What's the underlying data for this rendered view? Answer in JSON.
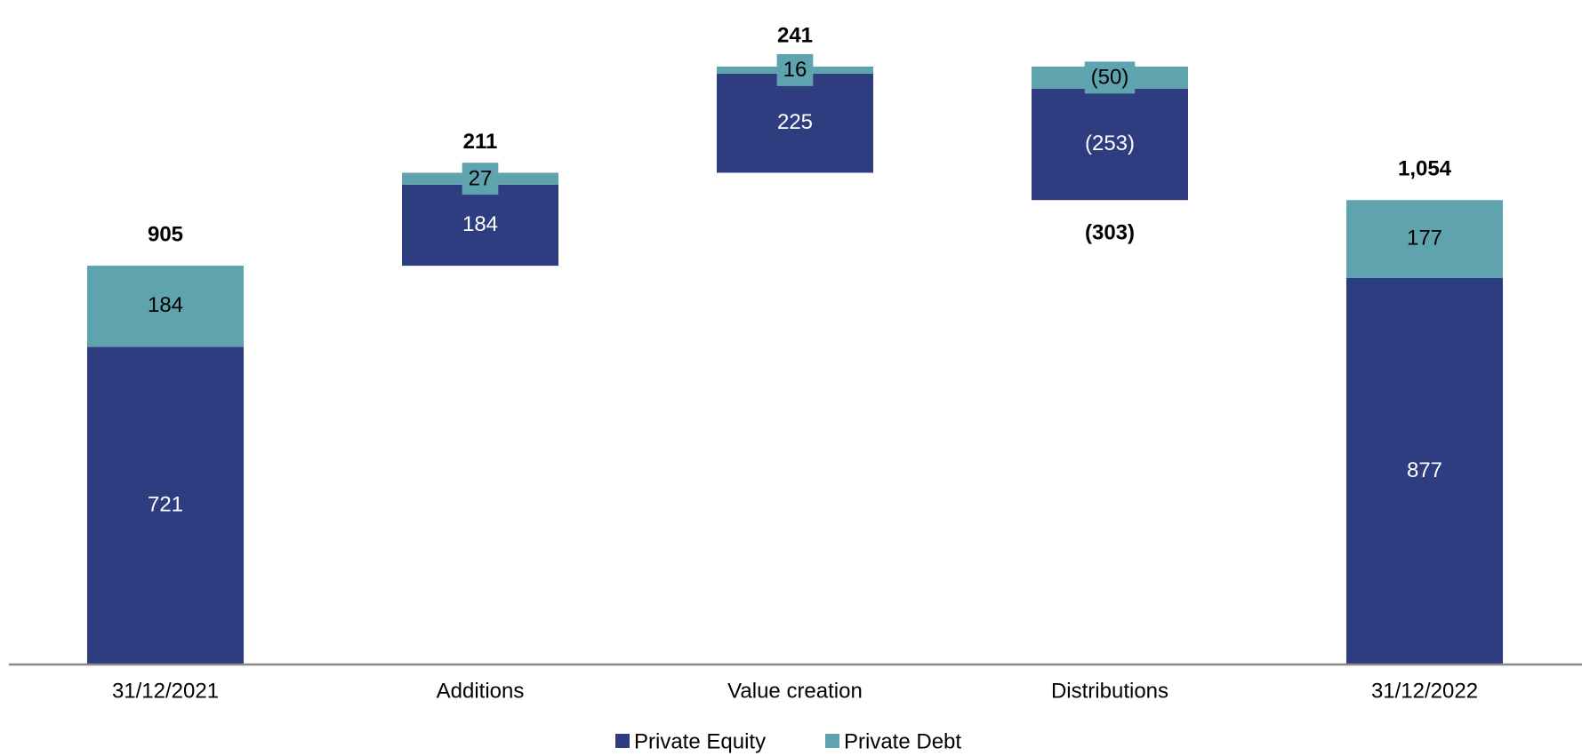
{
  "chart_data": {
    "type": "waterfall",
    "categories": [
      "31/12/2021",
      "Additions",
      "Value creation",
      "Distributions",
      "31/12/2022"
    ],
    "measure": [
      "absolute",
      "relative",
      "relative",
      "relative",
      "absolute"
    ],
    "series": [
      {
        "name": "Private Equity",
        "color": "#2e3d80",
        "label_color": "#ffffff",
        "values": [
          721,
          184,
          225,
          -253,
          877
        ],
        "value_labels": [
          "721",
          "184",
          "225",
          "(253)",
          "877"
        ]
      },
      {
        "name": "Private Debt",
        "color": "#5fa3ae",
        "label_color": "#000000",
        "values": [
          184,
          27,
          16,
          -50,
          177
        ],
        "value_labels": [
          "184",
          "27",
          "16",
          "(50)",
          "177"
        ]
      }
    ],
    "totals": [
      905,
      211,
      241,
      -303,
      1054
    ],
    "total_labels": [
      "905",
      "211",
      "241",
      "(303)",
      "1,054"
    ],
    "ylim": [
      0,
      1500
    ],
    "legend": "bottom"
  }
}
